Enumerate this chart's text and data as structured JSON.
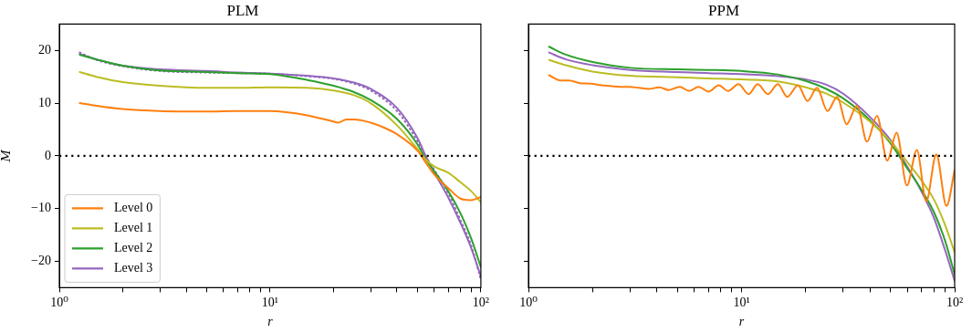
{
  "chart_data": [
    {
      "type": "line",
      "title": "PLM",
      "xlabel": "r",
      "ylabel": "Ṁ",
      "log": "x",
      "marker": "none",
      "legend": "bottom left",
      "xlim": [
        1,
        100
      ],
      "xticks": [
        {
          "value": 1,
          "label": "10⁰"
        },
        {
          "value": 2,
          "label": null
        },
        {
          "value": 3,
          "label": null
        },
        {
          "value": 4,
          "label": null
        },
        {
          "value": 5,
          "label": null
        },
        {
          "value": 6,
          "label": null
        },
        {
          "value": 7,
          "label": null
        },
        {
          "value": 8,
          "label": null
        },
        {
          "value": 9,
          "label": null
        },
        {
          "value": 10,
          "label": "10¹"
        },
        {
          "value": 20,
          "label": null
        },
        {
          "value": 30,
          "label": null
        },
        {
          "value": 40,
          "label": null
        },
        {
          "value": 50,
          "label": null
        },
        {
          "value": 60,
          "label": null
        },
        {
          "value": 70,
          "label": null
        },
        {
          "value": 80,
          "label": null
        },
        {
          "value": 90,
          "label": null
        },
        {
          "value": 100,
          "label": "10²"
        }
      ],
      "ylim": [
        -25,
        25
      ],
      "yticks": [
        -20,
        -10,
        0,
        10,
        20
      ],
      "ref_lines": [
        {
          "axis": "y",
          "value": 0,
          "color": "#000000",
          "line_style": "dotted"
        }
      ],
      "x": [
        1.25,
        1.5,
        2,
        3,
        5,
        7,
        10,
        15,
        20,
        25,
        30,
        40,
        50,
        55,
        60,
        70,
        80,
        90,
        100
      ],
      "series": [
        {
          "name": "Level 0",
          "color": "#ff7f0e",
          "x": [
            1.25,
            1.5,
            2,
            3,
            5,
            7,
            10,
            15,
            20,
            21,
            23,
            25,
            30,
            35,
            40,
            50,
            55,
            60,
            70,
            80,
            90,
            100
          ],
          "values": [
            10.0,
            9.5,
            8.9,
            8.5,
            8.4,
            8.5,
            8.5,
            7.7,
            6.5,
            6.3,
            6.9,
            6.9,
            6.3,
            5.3,
            4.1,
            1.0,
            -1.4,
            -3.5,
            -6.1,
            -8.1,
            -8.4,
            -7.8
          ]
        },
        {
          "name": "Level 1",
          "color": "#bcbd22",
          "values": [
            15.9,
            15.0,
            14.0,
            13.3,
            12.9,
            12.9,
            13.0,
            12.9,
            12.4,
            11.5,
            10.0,
            5.8,
            1.3,
            -0.8,
            -2.0,
            -3.2,
            -5.0,
            -6.7,
            -8.8
          ]
        },
        {
          "name": "Level 2",
          "color": "#2ca02c",
          "values": [
            19.2,
            18.3,
            17.1,
            16.2,
            15.9,
            15.7,
            15.5,
            14.4,
            13.3,
            12.1,
            10.6,
            7.0,
            2.2,
            -0.8,
            -2.9,
            -6.7,
            -10.9,
            -15.7,
            -21.1
          ]
        },
        {
          "name": "Level 3",
          "color": "#9467bd",
          "values": [
            19.3,
            18.3,
            17.1,
            16.4,
            16.1,
            15.8,
            15.6,
            15.2,
            14.7,
            13.9,
            12.7,
            9.1,
            3.4,
            -0.2,
            -3.1,
            -7.9,
            -12.7,
            -17.5,
            -22.9
          ]
        },
        {
          "color": "#9467bd",
          "line_style": "dotted",
          "values": [
            19.6,
            18.2,
            17.0,
            16.1,
            15.8,
            15.7,
            15.6,
            15.1,
            14.6,
            13.7,
            12.4,
            8.5,
            2.8,
            -0.3,
            -2.6,
            -7.1,
            -12.2,
            -17.0,
            -23.5
          ]
        }
      ]
    },
    {
      "type": "line",
      "title": "PPM",
      "xlabel": "r",
      "log": "x",
      "marker": "none",
      "tick_labels": "x",
      "xlim": [
        1,
        100
      ],
      "xticks": [
        {
          "value": 1,
          "label": "10⁰"
        },
        {
          "value": 2,
          "label": null
        },
        {
          "value": 3,
          "label": null
        },
        {
          "value": 4,
          "label": null
        },
        {
          "value": 5,
          "label": null
        },
        {
          "value": 6,
          "label": null
        },
        {
          "value": 7,
          "label": null
        },
        {
          "value": 8,
          "label": null
        },
        {
          "value": 9,
          "label": null
        },
        {
          "value": 10,
          "label": "10¹"
        },
        {
          "value": 20,
          "label": null
        },
        {
          "value": 30,
          "label": null
        },
        {
          "value": 40,
          "label": null
        },
        {
          "value": 50,
          "label": null
        },
        {
          "value": 60,
          "label": null
        },
        {
          "value": 70,
          "label": null
        },
        {
          "value": 80,
          "label": null
        },
        {
          "value": 90,
          "label": null
        },
        {
          "value": 100,
          "label": "10²"
        }
      ],
      "ylim": [
        -25,
        25
      ],
      "yticks": [
        {
          "value": -20,
          "label": null
        },
        {
          "value": -10,
          "label": null
        },
        {
          "value": 0,
          "label": null
        },
        {
          "value": 10,
          "label": null
        },
        {
          "value": 20,
          "label": null
        }
      ],
      "ref_lines": [
        {
          "axis": "y",
          "value": 0,
          "color": "#000000",
          "line_style": "dotted"
        }
      ],
      "x": [
        1.25,
        1.5,
        2,
        3,
        5,
        7,
        10,
        15,
        20,
        25,
        30,
        40,
        50,
        60,
        70,
        80,
        90,
        100
      ],
      "series": [
        {
          "color": "#ff7f0e",
          "x": [
            1.25,
            1.42,
            1.55,
            1.75,
            1.96,
            2.21,
            2.7,
            2.99,
            3.31,
            3.66,
            4.12,
            4.56,
            5.13,
            5.68,
            6.28,
            7.0,
            7.82,
            8.65,
            9.67,
            10.8,
            11.9,
            13.3,
            14.8,
            16.4,
            18.4,
            20.4,
            22.6,
            25.3,
            28.1,
            31.1,
            34.8,
            38.8,
            43.2,
            48.3,
            53.4,
            59.7,
            66.5,
            73.6,
            82.0,
            91.6,
            100
          ],
          "values": [
            15.3,
            14.3,
            14.3,
            13.8,
            13.7,
            13.4,
            13.1,
            13.1,
            12.9,
            12.7,
            13.0,
            12.5,
            13.1,
            12.3,
            13.1,
            12.2,
            13.4,
            12.3,
            13.6,
            11.7,
            13.6,
            11.7,
            13.6,
            11.2,
            13.4,
            10.4,
            12.9,
            8.5,
            11.2,
            6.0,
            9.5,
            2.7,
            7.6,
            -0.9,
            4.4,
            -5.6,
            1.1,
            -8.6,
            0.3,
            -9.5,
            -2.7
          ]
        },
        {
          "color": "#bcbd22",
          "values": [
            18.2,
            17.2,
            16.0,
            15.2,
            14.9,
            14.7,
            14.5,
            14.1,
            13.0,
            11.8,
            10.1,
            6.5,
            2.7,
            -1.2,
            -4.7,
            -8.3,
            -13.0,
            -18.3
          ]
        },
        {
          "color": "#2ca02c",
          "values": [
            20.7,
            19.2,
            17.8,
            16.7,
            16.4,
            16.3,
            16.1,
            15.4,
            14.2,
            12.7,
            10.9,
            6.8,
            2.4,
            -2.4,
            -6.5,
            -10.7,
            -16.0,
            -22.5
          ]
        },
        {
          "color": "#9467bd",
          "values": [
            19.6,
            18.3,
            17.2,
            16.3,
            15.9,
            15.7,
            15.5,
            15.1,
            14.5,
            13.5,
            11.8,
            7.4,
            3.0,
            -2.1,
            -6.8,
            -11.8,
            -17.8,
            -23.7
          ]
        }
      ]
    }
  ]
}
